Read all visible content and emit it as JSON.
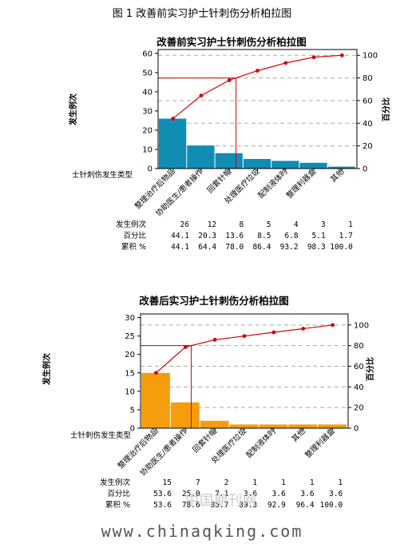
{
  "figure_title": "图 1 改善前实习护士针刺伤分析柏拉图",
  "watermark_cn": "中国期刊网",
  "watermark_url": "www.chinaqking.com",
  "colors": {
    "bar_before": "#0f8db3",
    "bar_after": "#f59d0c",
    "line": "#d40000",
    "grid": "#aaaaaa"
  },
  "chart_data": [
    {
      "type": "bar",
      "title": "改善前实习护士针刺伤分析柏拉图",
      "ylabel": "发生例次",
      "y2label": "百分比",
      "xlabel": "士针刺伤发生类型",
      "categories": [
        "整理治疗后物品",
        "协助医生/患者操作",
        "回套针帽",
        "处理医疗垃圾",
        "配制液体时",
        "整理利器盒",
        "其他"
      ],
      "values": [
        26,
        12,
        8,
        5,
        4,
        3,
        1
      ],
      "percent": [
        "44.1",
        "20.3",
        "13.6",
        "8.5",
        "6.8",
        "5.1",
        "1.7"
      ],
      "cumulative": [
        "44.1",
        "64.4",
        "78.0",
        "86.4",
        "93.2",
        "98.3",
        "100.0"
      ],
      "ylim": [
        0,
        62
      ],
      "yticks": [
        0,
        10,
        20,
        30,
        40,
        50,
        60
      ],
      "y2ticks": [
        0,
        20,
        40,
        60,
        80,
        100
      ],
      "row_labels": [
        "发生例次",
        "百分比",
        "累积 %"
      ],
      "threshold": 80
    },
    {
      "type": "bar",
      "title": "改善后实习护士针刺伤分析柏拉图",
      "ylabel": "发生例次",
      "y2label": "百分比",
      "xlabel": "士针刺伤发生类型",
      "categories": [
        "整理治疗后物品",
        "协助医生/患者操作",
        "回套针帽",
        "处理医疗垃圾",
        "配制液体时",
        "其他",
        "整理利器盒"
      ],
      "values": [
        15,
        7,
        2,
        1,
        1,
        1,
        1
      ],
      "percent": [
        "53.6",
        "25.0",
        "7.1",
        "3.6",
        "3.6",
        "3.6",
        "3.6"
      ],
      "cumulative": [
        "53.6",
        "78.6",
        "85.7",
        "89.3",
        "92.9",
        "96.4",
        "100.0"
      ],
      "ylim": [
        0,
        31
      ],
      "yticks": [
        0,
        5,
        10,
        15,
        20,
        25,
        30
      ],
      "y2ticks": [
        0,
        20,
        40,
        60,
        80,
        100
      ],
      "row_labels": [
        "发生例次",
        "百分比",
        "累积 %"
      ],
      "threshold": 80
    }
  ]
}
